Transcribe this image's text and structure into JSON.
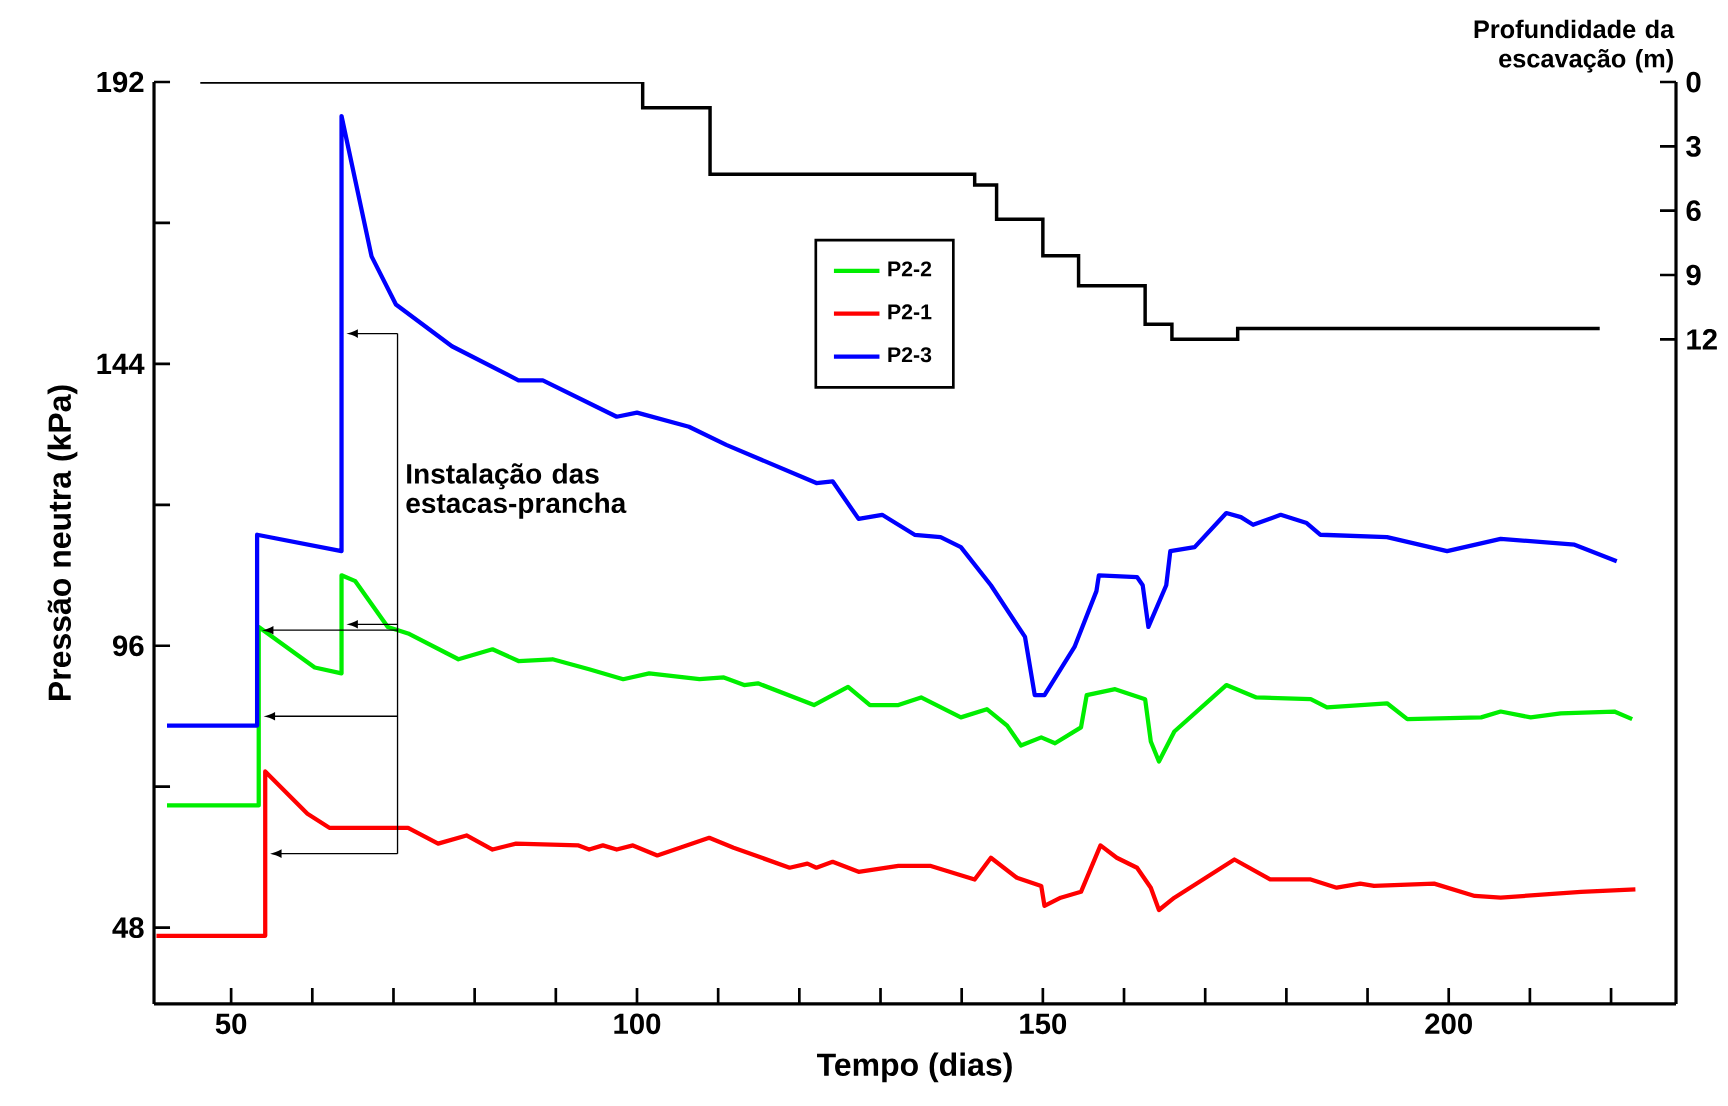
{
  "chart_data": {
    "type": "line",
    "xlabel": "Tempo (dias)",
    "ylabel": "Pressão neutra (kPa)",
    "y2label": "Profundidade da escavação (m)",
    "xlim": [
      40.5,
      228
    ],
    "ylim": [
      35,
      192
    ],
    "y2lim": [
      43,
      0
    ],
    "xticks": [
      50,
      {
        "value": 60,
        "label": null
      },
      {
        "value": 70,
        "label": null
      },
      {
        "value": 80,
        "label": null
      },
      {
        "value": 90,
        "label": null
      },
      100,
      {
        "value": 110,
        "label": null
      },
      {
        "value": 120,
        "label": null
      },
      {
        "value": 130,
        "label": null
      },
      {
        "value": 140,
        "label": null
      },
      150,
      {
        "value": 160,
        "label": null
      },
      {
        "value": 170,
        "label": null
      },
      {
        "value": 180,
        "label": null
      },
      {
        "value": 190,
        "label": null
      },
      200,
      {
        "value": 210,
        "label": null
      },
      {
        "value": 220,
        "label": null
      }
    ],
    "yticks": [
      48,
      {
        "value": 72,
        "label": null
      },
      96,
      {
        "value": 120,
        "label": null
      },
      144,
      {
        "value": 168,
        "label": null
      },
      192
    ],
    "y2ticks": [
      0,
      3,
      6,
      9,
      12
    ],
    "legend": "top",
    "annotations": [
      "Instalação das estacas-prancha"
    ],
    "series": [
      {
        "name": "P2-2",
        "color": "#00ee00",
        "x": [
          42.1,
          53.4,
          53.4,
          60.3,
          63.6,
          63.6,
          65.3,
          69.3,
          71.8,
          78,
          82.2,
          85.4,
          89.6,
          94.1,
          98.3,
          101.5,
          107.7,
          110.7,
          113.2,
          114.9,
          121.8,
          126,
          128.7,
          132.2,
          135,
          139.9,
          143.1,
          145.6,
          147.3,
          149.8,
          151.5,
          154.7,
          155.4,
          158.9,
          162.6,
          163.3,
          164.3,
          166.2,
          172.6,
          176.3,
          183,
          185,
          192.4,
          194.9,
          204,
          206.4,
          210.1,
          213.8,
          220.4,
          222.6
        ],
        "values": [
          68.8,
          68.8,
          99.2,
          92.3,
          91.3,
          108,
          107,
          99.2,
          98.1,
          93.7,
          95.4,
          93.4,
          93.7,
          92,
          90.3,
          91.3,
          90.3,
          90.6,
          89.3,
          89.6,
          85.9,
          89,
          85.9,
          85.9,
          87.2,
          83.8,
          85.2,
          82.4,
          79,
          80.4,
          79.4,
          82.1,
          87.6,
          88.6,
          86.9,
          79.7,
          76.3,
          81.4,
          89.3,
          87.2,
          86.9,
          85.5,
          86.2,
          83.5,
          83.8,
          84.8,
          83.8,
          84.5,
          84.8,
          83.5
        ]
      },
      {
        "name": "P2-1",
        "color": "#ff0000",
        "x": [
          40.8,
          54.2,
          54.2,
          59.4,
          62.1,
          71.8,
          75.5,
          79,
          82.2,
          85.1,
          92.8,
          94.1,
          95.8,
          97.5,
          99.5,
          102.5,
          108.9,
          111.9,
          118.8,
          121,
          122.1,
          124.1,
          127.3,
          132.2,
          136.2,
          141.6,
          143.6,
          146.8,
          149.8,
          150.2,
          152.2,
          154.7,
          157.1,
          159.1,
          161.6,
          163.3,
          164.3,
          166.2,
          173.6,
          178,
          183,
          186.2,
          189.1,
          190.8,
          198.2,
          203.2,
          206.4,
          216.3,
          223
        ],
        "values": [
          46.6,
          46.6,
          74.6,
          67.4,
          65,
          65,
          62.3,
          63.7,
          61.3,
          62.3,
          62,
          61.3,
          62,
          61.3,
          62,
          60.3,
          63.3,
          61.6,
          58.2,
          58.9,
          58.2,
          59.2,
          57.5,
          58.5,
          58.5,
          56.2,
          59.9,
          56.5,
          55.1,
          51.7,
          53.1,
          54.1,
          62,
          59.9,
          58.2,
          54.8,
          51,
          53.1,
          59.6,
          56.2,
          56.2,
          54.8,
          55.5,
          55.1,
          55.5,
          53.4,
          53.1,
          54.1,
          54.5
        ]
      },
      {
        "name": "P2-3",
        "color": "#0000ff",
        "x": [
          42.1,
          53.2,
          53.2,
          63.6,
          63.6,
          67.3,
          70.3,
          77.2,
          85.4,
          88.4,
          97.5,
          100,
          106.4,
          111,
          122.1,
          124.1,
          127.3,
          130.2,
          134.2,
          137.4,
          139.9,
          143.6,
          147.8,
          149,
          150.2,
          153.9,
          156.6,
          156.9,
          161.6,
          162.3,
          163,
          165.2,
          165.7,
          168.7,
          172.6,
          174.4,
          175.9,
          179.3,
          182.5,
          184.2,
          192.4,
          199.8,
          206.4,
          215.5,
          220.7
        ],
        "values": [
          82.4,
          82.4,
          114.9,
          112.1,
          186.2,
          162.3,
          154.1,
          147,
          141.2,
          141.2,
          135,
          135.7,
          133.3,
          130.2,
          123.7,
          124,
          117.6,
          118.3,
          114.9,
          114.5,
          112.8,
          106.3,
          97.5,
          87.6,
          87.6,
          95.8,
          105.3,
          108,
          107.7,
          106.3,
          99.2,
          106.3,
          112.1,
          112.8,
          118.6,
          117.9,
          116.6,
          118.3,
          116.9,
          114.9,
          114.5,
          112.1,
          114.2,
          113.2,
          110.4
        ]
      },
      {
        "type": "step",
        "axis": "y2",
        "color": "#000000",
        "x": [
          46.2,
          100.7,
          109,
          141.6,
          144.3,
          150,
          154.4,
          162.6,
          165.9,
          174,
          218.6
        ],
        "values": [
          0,
          1.2,
          4.3,
          4.8,
          6.4,
          8.1,
          9.5,
          11.3,
          12,
          11.5,
          11.5
        ]
      }
    ]
  }
}
